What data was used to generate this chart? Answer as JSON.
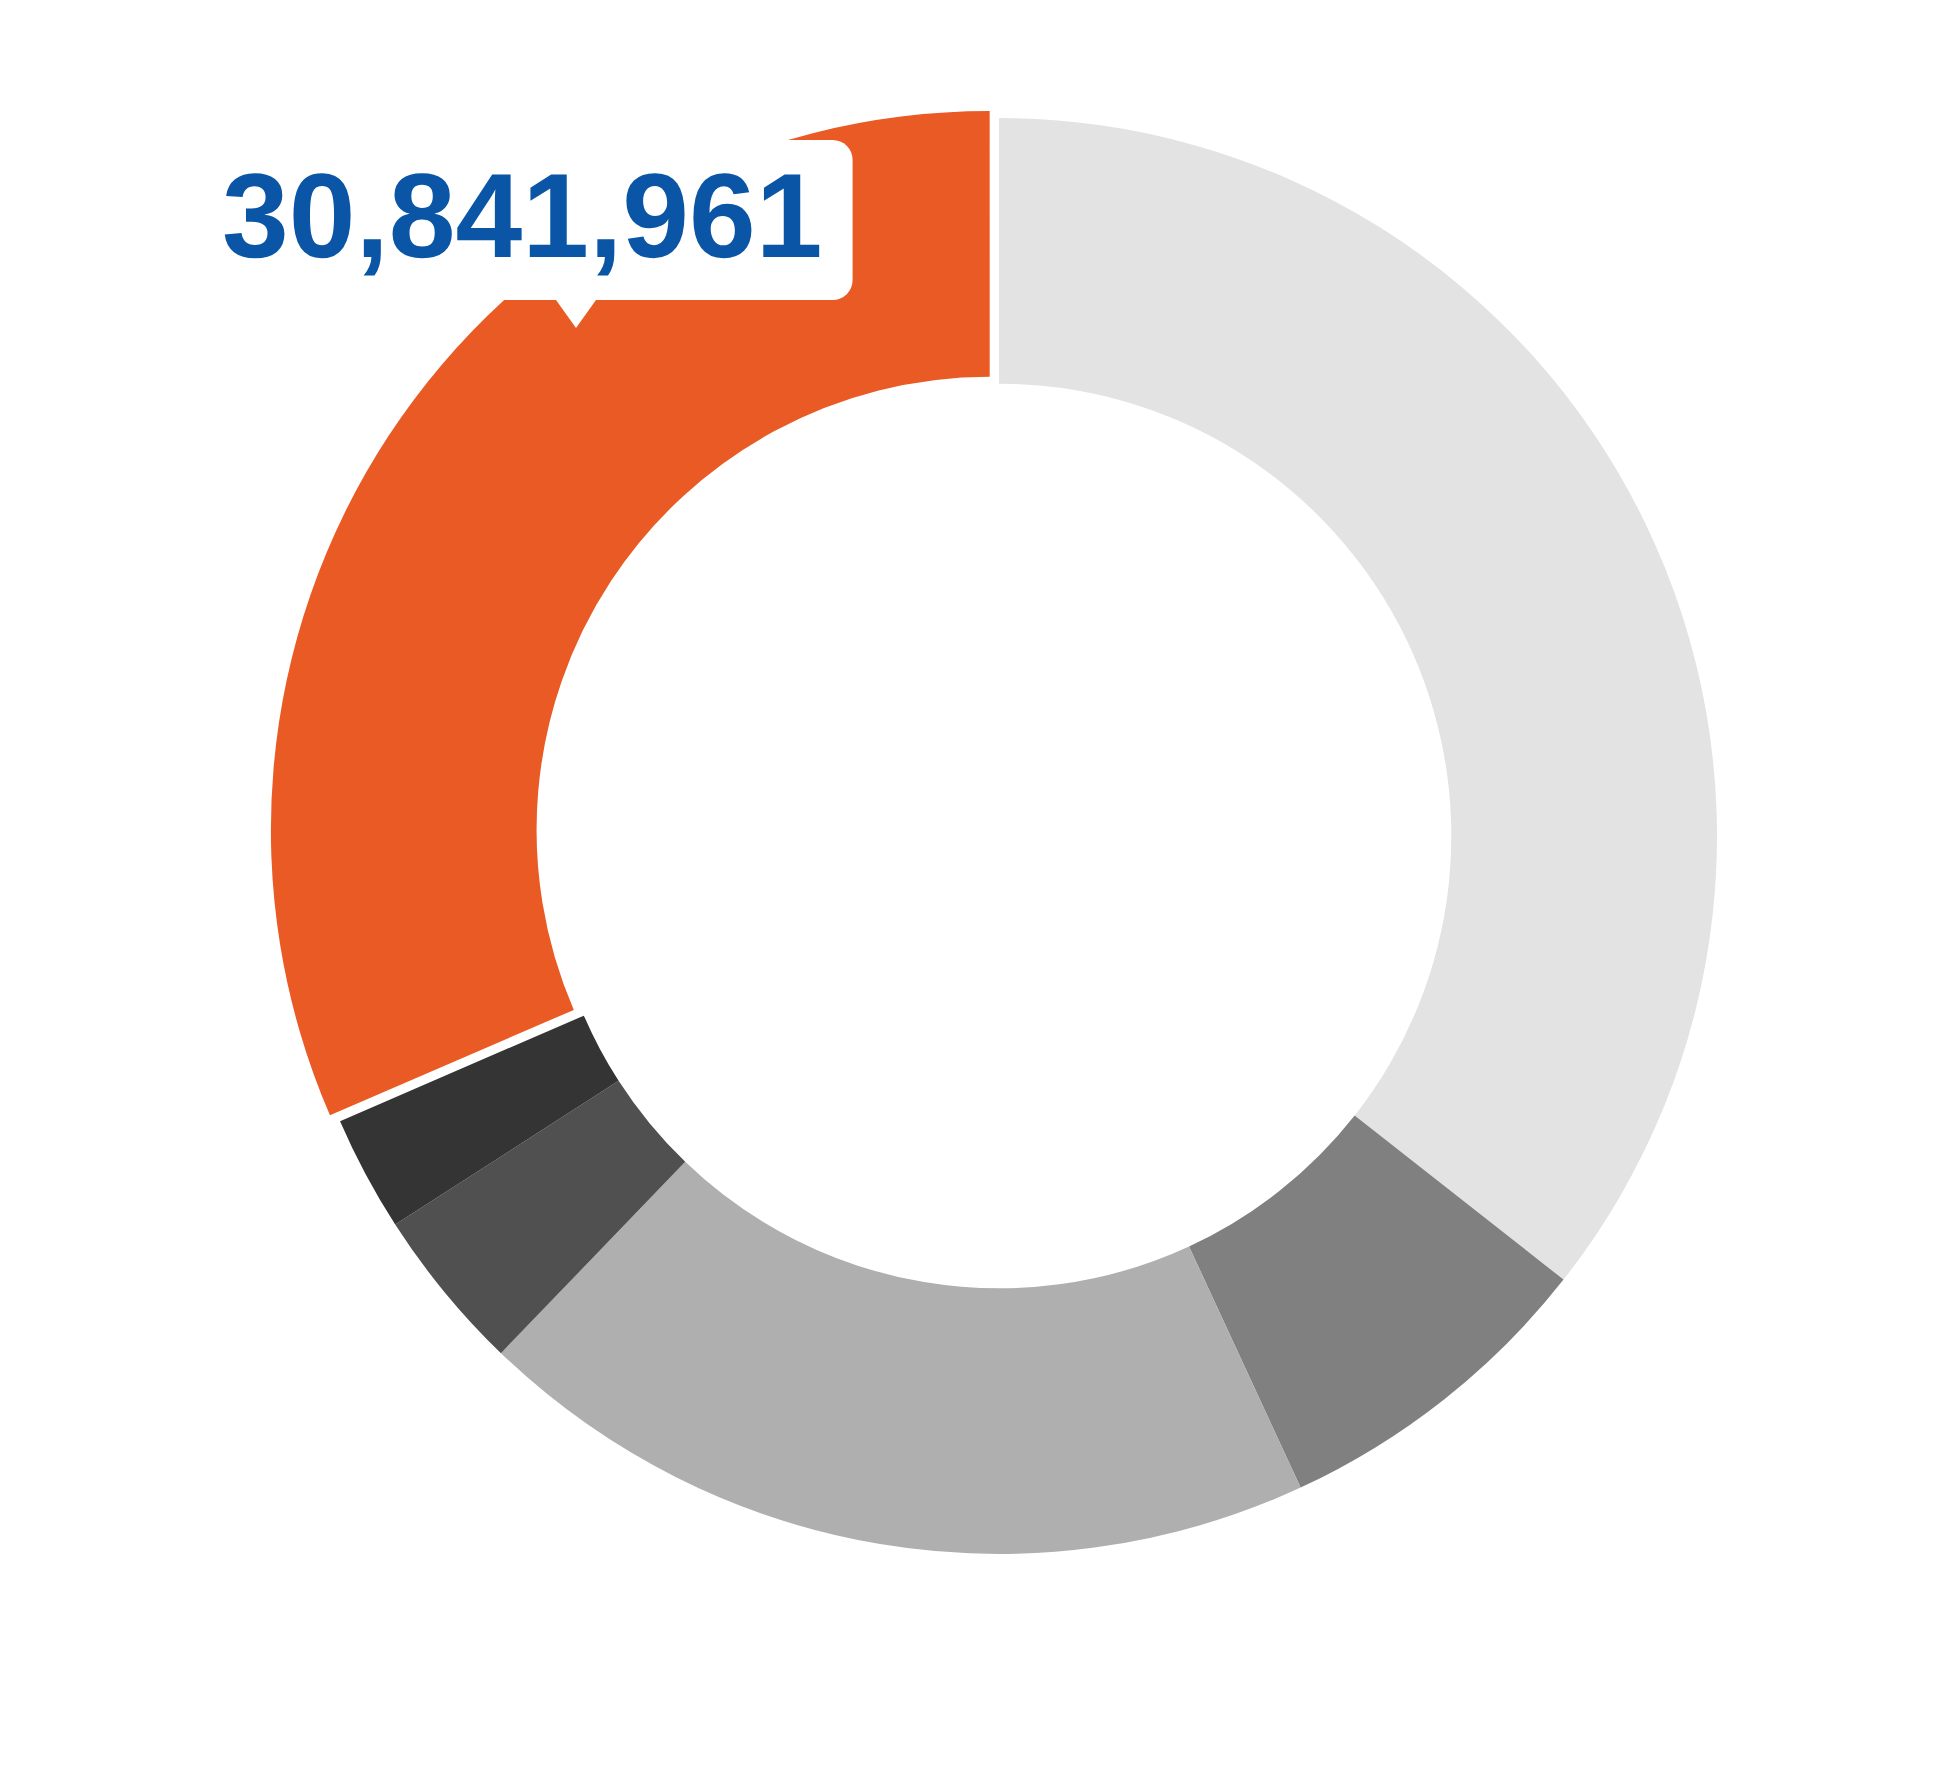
{
  "chart_data": {
    "type": "donut",
    "categories": [
      null,
      null,
      null,
      null,
      null,
      null
    ],
    "values": [
      35.6,
      7.5,
      19.1,
      3.7,
      2.6,
      31.5
    ],
    "colors": [
      "#e3e3e3",
      "#808080",
      "#afafaf",
      "#505050",
      "#343434",
      "#e95a24"
    ],
    "annotations": [
      "30,841,961"
    ],
    "legend": false
  }
}
